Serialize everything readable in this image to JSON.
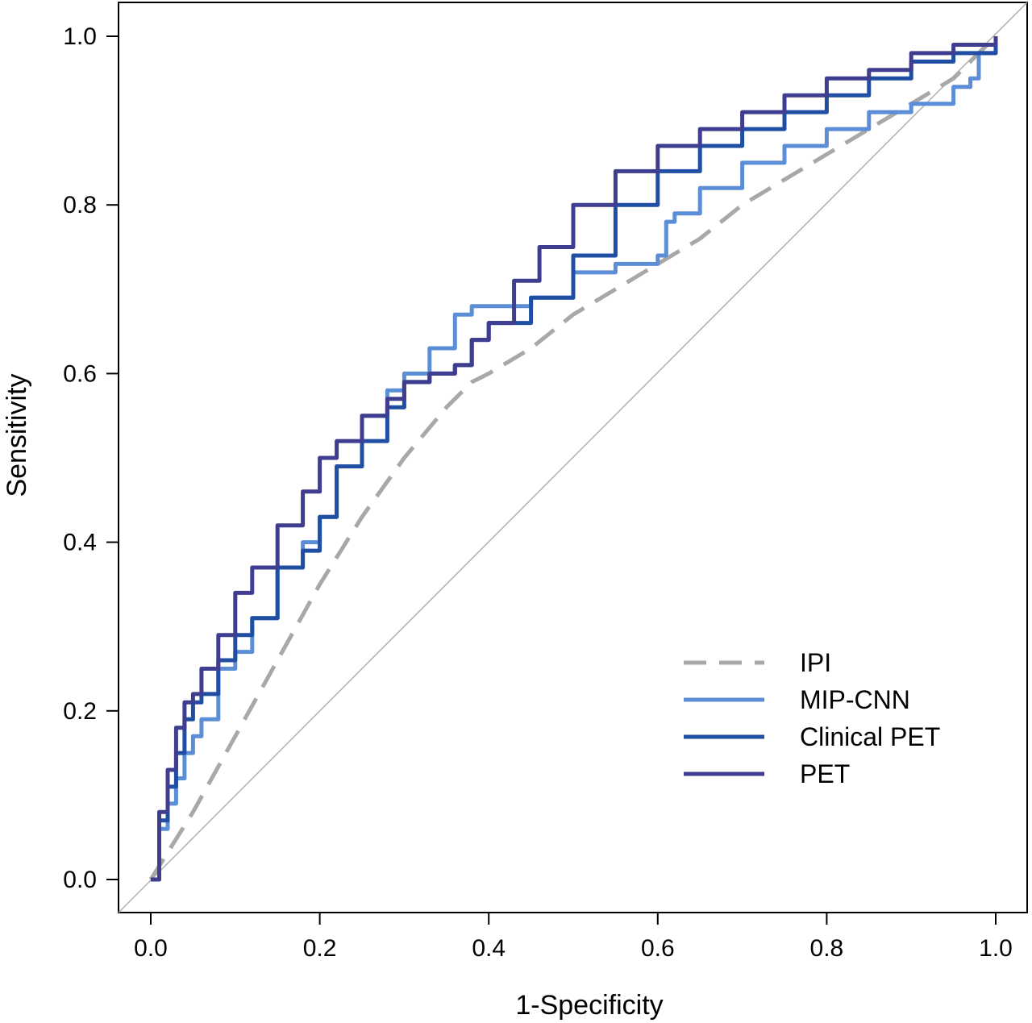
{
  "chart_data": {
    "type": "line",
    "title": "",
    "xlabel": "1-Specificity",
    "ylabel": "Sensitivity",
    "xlim": [
      0,
      1
    ],
    "ylim": [
      0,
      1
    ],
    "xticks": [
      "0.0",
      "0.2",
      "0.4",
      "0.6",
      "0.8",
      "1.0"
    ],
    "yticks": [
      "0.0",
      "0.2",
      "0.4",
      "0.6",
      "0.8",
      "1.0"
    ],
    "grid": false,
    "legend_position": "bottom-right",
    "reference_line": {
      "style": "diagonal",
      "color": "#b0b0b0"
    },
    "series": [
      {
        "name": "IPI",
        "color": "#a8a8a8",
        "dash": "dashed",
        "x": [
          0,
          0.05,
          0.1,
          0.15,
          0.2,
          0.25,
          0.3,
          0.35,
          0.38,
          0.4,
          0.45,
          0.5,
          0.55,
          0.6,
          0.65,
          0.7,
          0.75,
          0.8,
          0.85,
          0.9,
          0.95,
          0.97,
          1.0
        ],
        "y": [
          0,
          0.08,
          0.17,
          0.26,
          0.35,
          0.43,
          0.5,
          0.56,
          0.59,
          0.6,
          0.63,
          0.67,
          0.7,
          0.73,
          0.76,
          0.8,
          0.83,
          0.86,
          0.89,
          0.92,
          0.95,
          0.97,
          1.0
        ]
      },
      {
        "name": "MIP-CNN",
        "color": "#5b8ed6",
        "dash": "solid",
        "x": [
          0,
          0.01,
          0.02,
          0.03,
          0.04,
          0.05,
          0.06,
          0.08,
          0.1,
          0.12,
          0.15,
          0.18,
          0.2,
          0.22,
          0.25,
          0.28,
          0.3,
          0.33,
          0.36,
          0.38,
          0.4,
          0.45,
          0.5,
          0.55,
          0.6,
          0.61,
          0.62,
          0.65,
          0.7,
          0.75,
          0.8,
          0.85,
          0.9,
          0.95,
          0.97,
          0.98,
          1.0
        ],
        "y": [
          0,
          0.06,
          0.09,
          0.12,
          0.15,
          0.17,
          0.19,
          0.25,
          0.27,
          0.31,
          0.37,
          0.4,
          0.43,
          0.49,
          0.55,
          0.58,
          0.6,
          0.63,
          0.67,
          0.68,
          0.68,
          0.69,
          0.72,
          0.73,
          0.74,
          0.78,
          0.79,
          0.82,
          0.85,
          0.87,
          0.89,
          0.91,
          0.92,
          0.94,
          0.95,
          0.98,
          1.0
        ]
      },
      {
        "name": "Clinical PET",
        "color": "#1f4ea3",
        "dash": "solid",
        "x": [
          0,
          0.01,
          0.02,
          0.03,
          0.04,
          0.05,
          0.06,
          0.08,
          0.1,
          0.12,
          0.15,
          0.18,
          0.2,
          0.22,
          0.25,
          0.28,
          0.3,
          0.33,
          0.36,
          0.38,
          0.4,
          0.45,
          0.5,
          0.55,
          0.6,
          0.65,
          0.7,
          0.75,
          0.8,
          0.85,
          0.9,
          0.95,
          1.0
        ],
        "y": [
          0,
          0.07,
          0.11,
          0.15,
          0.19,
          0.21,
          0.22,
          0.26,
          0.29,
          0.31,
          0.37,
          0.39,
          0.43,
          0.49,
          0.52,
          0.56,
          0.59,
          0.6,
          0.61,
          0.64,
          0.66,
          0.69,
          0.74,
          0.8,
          0.84,
          0.87,
          0.89,
          0.91,
          0.93,
          0.95,
          0.97,
          0.98,
          1.0
        ]
      },
      {
        "name": "PET",
        "color": "#3f3d8f",
        "dash": "solid",
        "x": [
          0,
          0.01,
          0.02,
          0.03,
          0.04,
          0.05,
          0.06,
          0.08,
          0.1,
          0.12,
          0.15,
          0.18,
          0.2,
          0.22,
          0.25,
          0.28,
          0.3,
          0.33,
          0.36,
          0.38,
          0.4,
          0.43,
          0.46,
          0.5,
          0.55,
          0.6,
          0.65,
          0.7,
          0.75,
          0.8,
          0.85,
          0.9,
          0.95,
          1.0
        ],
        "y": [
          0,
          0.08,
          0.13,
          0.18,
          0.21,
          0.22,
          0.25,
          0.29,
          0.34,
          0.37,
          0.42,
          0.46,
          0.5,
          0.52,
          0.55,
          0.57,
          0.59,
          0.6,
          0.61,
          0.64,
          0.66,
          0.71,
          0.75,
          0.8,
          0.84,
          0.87,
          0.89,
          0.91,
          0.93,
          0.95,
          0.96,
          0.98,
          0.99,
          1.0
        ]
      }
    ]
  }
}
